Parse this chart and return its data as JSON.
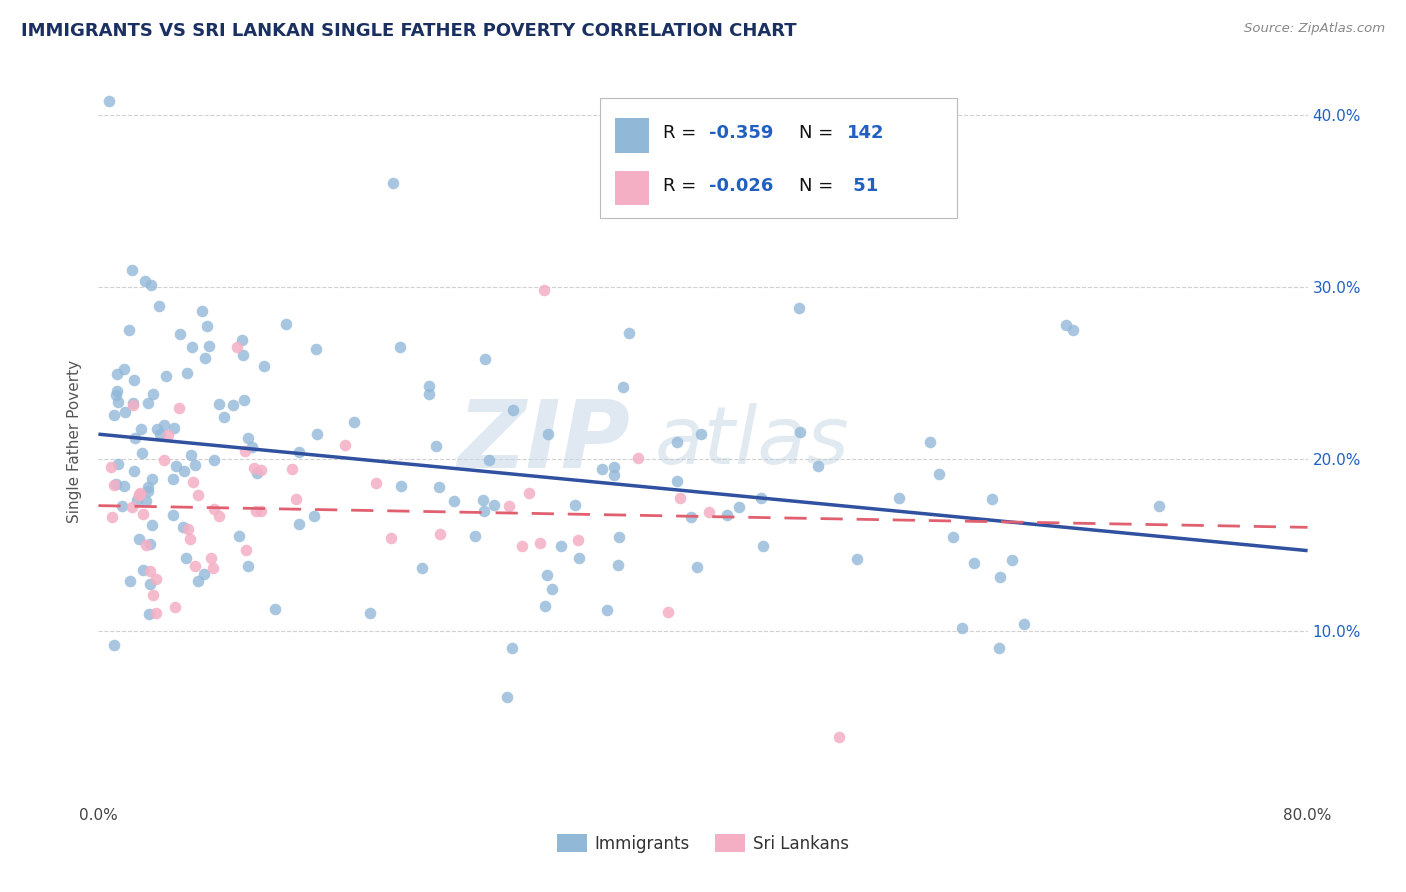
{
  "title": "IMMIGRANTS VS SRI LANKAN SINGLE FATHER POVERTY CORRELATION CHART",
  "source_text": "Source: ZipAtlas.com",
  "ylabel": "Single Father Poverty",
  "xlim": [
    0.0,
    0.8
  ],
  "ylim": [
    0.0,
    0.42
  ],
  "xtick_labels": [
    "0.0%",
    "",
    "",
    "",
    "",
    "",
    "",
    "",
    "80.0%"
  ],
  "xtick_values": [
    0.0,
    0.1,
    0.2,
    0.3,
    0.4,
    0.5,
    0.6,
    0.7,
    0.8
  ],
  "ytick_labels": [
    "10.0%",
    "20.0%",
    "30.0%",
    "40.0%"
  ],
  "ytick_values": [
    0.1,
    0.2,
    0.3,
    0.4
  ],
  "immigrant_color": "#92b8d8",
  "srilankan_color": "#f4afc4",
  "immigrant_line_color": "#3050a0",
  "srilankan_line_color": "#e06070",
  "immigrant_R": -0.359,
  "immigrant_N": 142,
  "srilankan_R": -0.026,
  "srilankan_N": 51,
  "legend_label_immigrants": "Immigrants",
  "legend_label_srilankans": "Sri Lankans",
  "background_color": "#ffffff",
  "grid_color": "#cccccc",
  "title_color": "#1a3060",
  "value_color": "#2060c0",
  "label_color": "#111111",
  "source_color": "#888888"
}
